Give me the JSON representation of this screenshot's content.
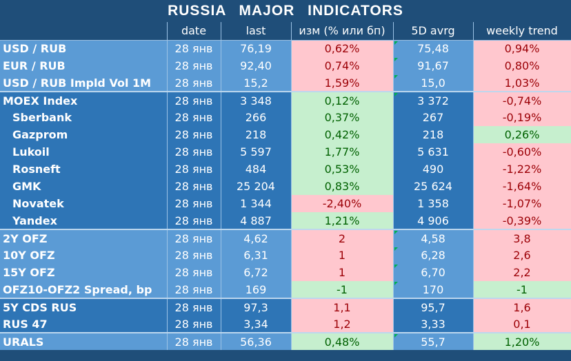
{
  "title": "RUSSIA    MAJOR    INDICATORS",
  "columns": [
    "",
    "date",
    "last",
    "изм (% или бп)",
    "5D avrg",
    "weekly trend"
  ],
  "colors": {
    "header": "#1f4e79",
    "light": "#5b9bd5",
    "dark": "#2e75b6",
    "pos_bg": "#c6efce",
    "pos_fg": "#006100",
    "neg_bg": "#ffc7ce",
    "neg_fg": "#9c0006"
  },
  "rows": [
    {
      "name": "USD / RUB",
      "date": "28 янв",
      "last": "76,19",
      "chg": "0,62%",
      "avg": "75,48",
      "trend": "0,94%"
    },
    {
      "name": "EUR / RUB",
      "date": "28 янв",
      "last": "92,40",
      "chg": "0,74%",
      "avg": "91,67",
      "trend": "0,80%"
    },
    {
      "name": "USD / RUB Impld Vol 1M",
      "date": "28 янв",
      "last": "15,2",
      "chg": "1,59%",
      "avg": "15,0",
      "trend": "1,03%"
    },
    {
      "name": "MOEX Index",
      "date": "28 янв",
      "last": "3 348",
      "chg": "0,12%",
      "avg": "3 372",
      "trend": "-0,74%"
    },
    {
      "name": "Sberbank",
      "date": "28 янв",
      "last": "266",
      "chg": "0,37%",
      "avg": "267",
      "trend": "-0,19%"
    },
    {
      "name": "Gazprom",
      "date": "28 янв",
      "last": "218",
      "chg": "0,42%",
      "avg": "218",
      "trend": "0,26%"
    },
    {
      "name": "Lukoil",
      "date": "28 янв",
      "last": "5 597",
      "chg": "1,77%",
      "avg": "5 631",
      "trend": "-0,60%"
    },
    {
      "name": "Rosneft",
      "date": "28 янв",
      "last": "484",
      "chg": "0,53%",
      "avg": "490",
      "trend": "-1,22%"
    },
    {
      "name": "GMK",
      "date": "28 янв",
      "last": "25 204",
      "chg": "0,83%",
      "avg": "25 624",
      "trend": "-1,64%"
    },
    {
      "name": "Novatek",
      "date": "28 янв",
      "last": "1 344",
      "chg": "-2,40%",
      "avg": "1 358",
      "trend": "-1,07%"
    },
    {
      "name": "Yandex",
      "date": "28 янв",
      "last": "4 887",
      "chg": "1,21%",
      "avg": "4 906",
      "trend": "-0,39%"
    },
    {
      "name": "2Y OFZ",
      "date": "28 янв",
      "last": "4,62",
      "chg": "2",
      "avg": "4,58",
      "trend": "3,8"
    },
    {
      "name": "10Y OFZ",
      "date": "28 янв",
      "last": "6,31",
      "chg": "1",
      "avg": "6,28",
      "trend": "2,6"
    },
    {
      "name": "15Y OFZ",
      "date": "28 янв",
      "last": "6,72",
      "chg": "1",
      "avg": "6,70",
      "trend": "2,2"
    },
    {
      "name": "OFZ10-OFZ2 Spread, bp",
      "date": "28 янв",
      "last": "169",
      "chg": "-1",
      "avg": "170",
      "trend": "-1"
    },
    {
      "name": "5Y CDS RUS",
      "date": "28 янв",
      "last": "97,3",
      "chg": "1,1",
      "avg": "95,7",
      "trend": "1,6"
    },
    {
      "name": "RUS 47",
      "date": "28 янв",
      "last": "3,34",
      "chg": "1,2",
      "avg": "3,33",
      "trend": "0,1"
    },
    {
      "name": "URALS",
      "date": "28 янв",
      "last": "56,36",
      "chg": "0,48%",
      "avg": "55,7",
      "trend": "1,20%"
    }
  ]
}
